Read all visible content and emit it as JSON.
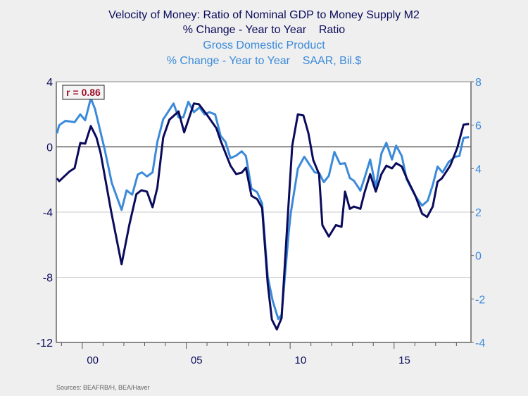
{
  "chart_data": {
    "type": "line",
    "title_lines": [
      "Velocity of Money: Ratio of Nominal GDP to Money Supply M2",
      "% Change - Year to Year    Ratio",
      "Gross Domestic Product",
      "% Change - Year to Year    SAAR, Bil.$"
    ],
    "annotation": "r = 0.86",
    "source": "Sources:  BEAFRB/H, BEA/Haver",
    "x_range": [
      1998.75,
      2018.7
    ],
    "x_ticks": [
      {
        "year": 2000,
        "label": "00"
      },
      {
        "year": 2005,
        "label": "05"
      },
      {
        "year": 2010,
        "label": "10"
      },
      {
        "year": 2015,
        "label": "15"
      }
    ],
    "left_axis": {
      "ylim": [
        -12,
        4
      ],
      "ticks": [
        4,
        0,
        -4,
        -8,
        -12
      ]
    },
    "right_axis": {
      "ylim": [
        -4,
        8
      ],
      "ticks": [
        8,
        6,
        4,
        2,
        0,
        -2,
        -4
      ]
    },
    "zero_line": true,
    "gridlines": [
      -4,
      -8
    ],
    "colors": {
      "velocity": "#0b0b5c",
      "gdp": "#3b8ad9",
      "annotation": "#a0102a",
      "background": "#efefef"
    },
    "series": [
      {
        "axis": "left",
        "color": "#0b0b5c",
        "x": [
          1998.78,
          1998.89,
          1999.39,
          1999.63,
          1999.9,
          2000.14,
          2000.41,
          2000.68,
          2000.88,
          2001.39,
          2001.89,
          2002.26,
          2002.6,
          2002.84,
          2003.11,
          2003.38,
          2003.61,
          2003.89,
          2004.19,
          2004.63,
          2004.9,
          2005.37,
          2005.61,
          2005.98,
          2006.45,
          2006.66,
          2007.13,
          2007.4,
          2007.67,
          2007.87,
          2008.14,
          2008.41,
          2008.65,
          2008.92,
          2009.12,
          2009.36,
          2009.59,
          2009.86,
          2010.1,
          2010.37,
          2010.64,
          2010.88,
          2011.11,
          2011.39,
          2011.55,
          2011.86,
          2012.2,
          2012.47,
          2012.64,
          2012.87,
          2013.07,
          2013.38,
          2013.58,
          2013.85,
          2014.12,
          2014.39,
          2014.63,
          2014.9,
          2015.1,
          2015.37,
          2015.61,
          2016.01,
          2016.35,
          2016.59,
          2016.86,
          2017.09,
          2017.3,
          2017.7,
          2018.04,
          2018.34,
          2018.61
        ],
        "y": [
          -1.93,
          -2.1,
          -1.5,
          -1.3,
          0.24,
          0.2,
          1.28,
          0.58,
          -0.37,
          -3.96,
          -7.2,
          -4.8,
          -2.9,
          -2.66,
          -2.74,
          -3.7,
          -2.5,
          0.58,
          1.67,
          2.18,
          0.89,
          2.67,
          2.62,
          2.0,
          1.15,
          0.37,
          -1.15,
          -1.67,
          -1.58,
          -1.28,
          -3.0,
          -3.2,
          -3.74,
          -8.4,
          -10.6,
          -11.2,
          -10.5,
          -4.8,
          0.07,
          2.0,
          1.93,
          0.84,
          -0.8,
          -1.67,
          -4.8,
          -5.5,
          -4.8,
          -4.9,
          -2.74,
          -3.8,
          -3.66,
          -3.8,
          -2.8,
          -1.67,
          -2.74,
          -1.67,
          -1.15,
          -1.32,
          -1.0,
          -1.2,
          -1.93,
          -2.96,
          -4.1,
          -4.3,
          -3.66,
          -2.14,
          -1.93,
          -1.15,
          -0.07,
          1.36,
          1.41
        ]
      },
      {
        "axis": "right",
        "color": "#3b8ad9",
        "x": [
          1998.78,
          1998.89,
          1999.19,
          1999.63,
          1999.9,
          2000.14,
          2000.41,
          2000.61,
          2001.08,
          2001.42,
          2001.89,
          2002.13,
          2002.4,
          2002.67,
          2002.87,
          2003.11,
          2003.38,
          2003.61,
          2003.89,
          2004.12,
          2004.39,
          2004.63,
          2004.86,
          2005.1,
          2005.37,
          2005.64,
          2005.88,
          2006.11,
          2006.39,
          2006.66,
          2006.89,
          2007.13,
          2007.4,
          2007.67,
          2007.87,
          2008.14,
          2008.41,
          2008.65,
          2008.92,
          2009.16,
          2009.43,
          2009.59,
          2009.93,
          2010.03,
          2010.37,
          2010.68,
          2010.95,
          2011.18,
          2011.39,
          2011.62,
          2011.86,
          2012.13,
          2012.4,
          2012.64,
          2012.87,
          2013.07,
          2013.38,
          2013.58,
          2013.85,
          2014.12,
          2014.39,
          2014.63,
          2014.9,
          2015.1,
          2015.37,
          2015.61,
          2016.01,
          2016.35,
          2016.62,
          2016.86,
          2017.09,
          2017.33,
          2017.64,
          2017.94,
          2018.14,
          2018.34,
          2018.61
        ],
        "y": [
          5.62,
          6.0,
          6.2,
          6.14,
          6.5,
          6.23,
          7.24,
          6.75,
          4.87,
          3.34,
          2.1,
          3.0,
          2.8,
          3.73,
          3.83,
          3.64,
          3.83,
          5.23,
          6.27,
          6.6,
          7.0,
          6.36,
          6.36,
          7.08,
          6.6,
          6.82,
          6.5,
          6.6,
          6.5,
          5.5,
          5.23,
          4.48,
          4.6,
          4.8,
          4.58,
          3.08,
          2.92,
          2.4,
          -0.97,
          -2.08,
          -2.92,
          -2.73,
          1.07,
          1.95,
          4.0,
          4.55,
          4.16,
          3.83,
          3.8,
          3.38,
          3.67,
          4.77,
          4.22,
          4.25,
          3.57,
          3.44,
          2.99,
          3.57,
          4.42,
          3.15,
          4.7,
          5.19,
          4.42,
          5.06,
          4.58,
          3.5,
          2.76,
          2.3,
          2.53,
          3.25,
          4.1,
          3.83,
          4.32,
          4.55,
          4.58,
          5.42,
          5.45
        ]
      }
    ]
  }
}
